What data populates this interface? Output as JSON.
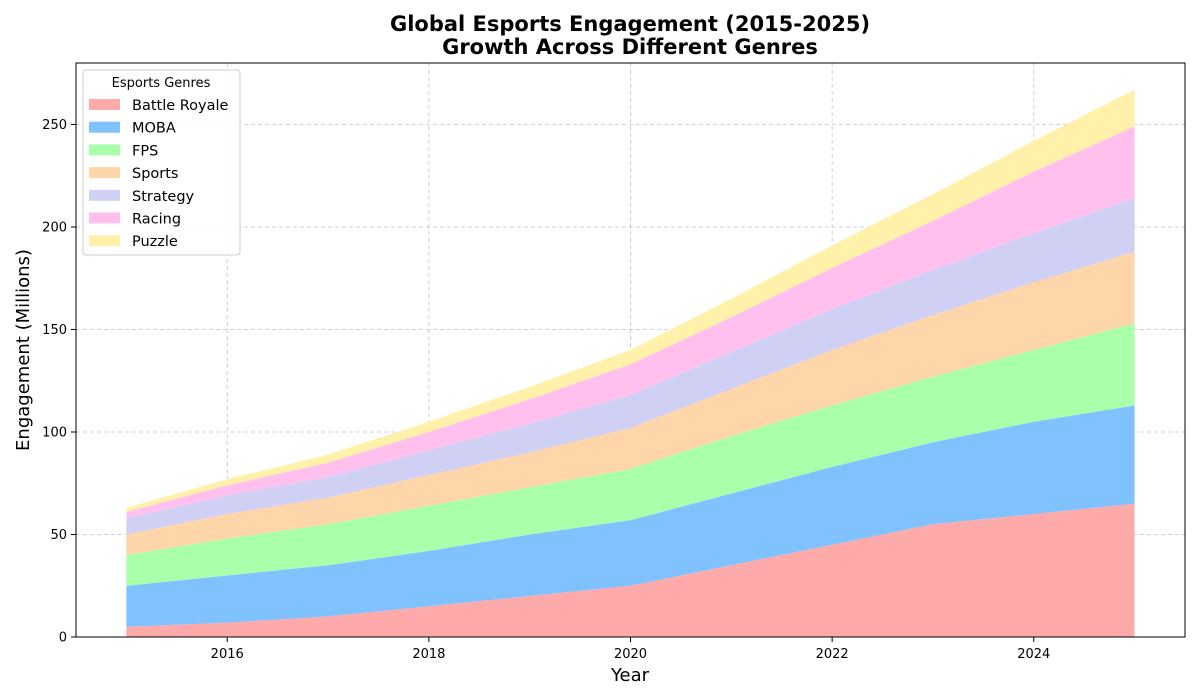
{
  "chart_data": {
    "type": "area",
    "stacked": true,
    "title": "Global Esports Engagement (2015-2025)",
    "subtitle": "Growth Across Different Genres",
    "xlabel": "Year",
    "ylabel": "Engagement (Millions)",
    "x": [
      2015,
      2016,
      2017,
      2018,
      2019,
      2020,
      2021,
      2022,
      2023,
      2024,
      2025
    ],
    "xlim": [
      2014.5,
      2025.5
    ],
    "ylim": [
      0,
      280
    ],
    "xticks": [
      2016,
      2018,
      2020,
      2022,
      2024
    ],
    "yticks": [
      0,
      50,
      100,
      150,
      200,
      250
    ],
    "grid": true,
    "legend": {
      "title": "Esports Genres",
      "placement": "top-left"
    },
    "series": [
      {
        "name": "Battle Royale",
        "color": "#ffaaaa",
        "values": [
          5,
          7,
          10,
          15,
          20,
          25,
          35,
          45,
          55,
          60,
          65
        ]
      },
      {
        "name": "MOBA",
        "color": "#80c1ff",
        "values": [
          20,
          23,
          25,
          27,
          30,
          32,
          35,
          38,
          40,
          45,
          48
        ]
      },
      {
        "name": "FPS",
        "color": "#aaffaa",
        "values": [
          15,
          18,
          20,
          22,
          23,
          25,
          28,
          30,
          32,
          35,
          40
        ]
      },
      {
        "name": "Sports",
        "color": "#ffd5aa",
        "values": [
          10,
          12,
          13,
          15,
          17,
          20,
          23,
          27,
          30,
          33,
          35
        ]
      },
      {
        "name": "Strategy",
        "color": "#d0d0f5",
        "values": [
          8,
          9,
          10,
          12,
          14,
          16,
          18,
          20,
          22,
          24,
          26
        ]
      },
      {
        "name": "Racing",
        "color": "#ffc0ee",
        "values": [
          3,
          5,
          7,
          9,
          12,
          15,
          17,
          20,
          24,
          30,
          35
        ]
      },
      {
        "name": "Puzzle",
        "color": "#fff0aa",
        "values": [
          2,
          3,
          4,
          5,
          6,
          7,
          9,
          11,
          13,
          15,
          18
        ]
      }
    ]
  }
}
